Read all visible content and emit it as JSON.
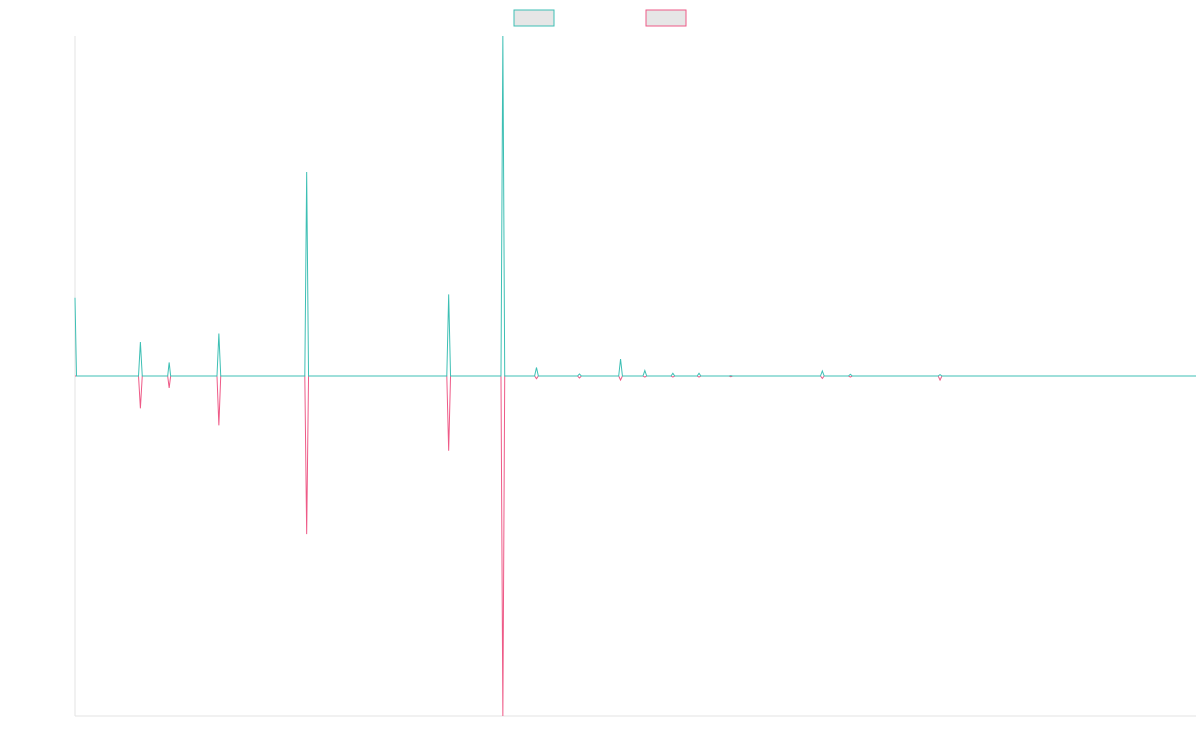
{
  "chart_data": {
    "type": "line",
    "title": "",
    "xlabel": "",
    "ylabel": "",
    "grid": false,
    "legend_position": "top-center",
    "x": [
      0,
      0.04,
      1.7,
      1.75,
      1.8,
      2.48,
      2.52,
      2.56,
      3.8,
      3.85,
      3.9,
      6.15,
      6.2,
      6.25,
      9.95,
      10.0,
      10.05,
      11.4,
      11.45,
      11.5,
      12.3,
      12.35,
      12.4,
      13.45,
      13.5,
      13.55,
      14.55,
      14.6,
      14.65,
      15.2,
      15.25,
      15.3,
      15.95,
      16.0,
      16.05,
      16.65,
      16.7,
      16.75,
      17.5,
      17.55,
      17.6,
      19.95,
      20.0,
      20.05,
      20.7,
      20.75,
      20.8,
      23.1,
      23.15,
      23.2,
      30.0
    ],
    "ylim": [
      -100,
      100
    ],
    "series": [
      {
        "name": "",
        "color": "#3dbfb4",
        "values": [
          23,
          0,
          0,
          10,
          0,
          0,
          4,
          0,
          0,
          12.5,
          0,
          0,
          60,
          0,
          0,
          24,
          0,
          0,
          100,
          0,
          0,
          2.5,
          0,
          0,
          0.6,
          0,
          0,
          5,
          0,
          0,
          1.6,
          0,
          0,
          0.8,
          0,
          0,
          0.8,
          0,
          0,
          0.1,
          0,
          0,
          1.5,
          0,
          0,
          0.5,
          0,
          0,
          0.4,
          0,
          0
        ]
      },
      {
        "name": "",
        "color": "#ee5a87",
        "values": [
          0,
          0,
          0,
          -9.5,
          0,
          0,
          -3.5,
          0,
          0,
          -14.5,
          0,
          0,
          -46.5,
          0,
          0,
          -22,
          0,
          0,
          -100,
          0,
          0,
          -0.8,
          0,
          0,
          -0.6,
          0,
          0,
          -1.2,
          0,
          0,
          -0.3,
          0,
          0,
          -0.3,
          0,
          0,
          -0.3,
          0,
          0,
          -0.2,
          0,
          0,
          -0.7,
          0,
          0,
          -0.3,
          0,
          0,
          -1.2,
          0,
          0
        ]
      }
    ]
  }
}
